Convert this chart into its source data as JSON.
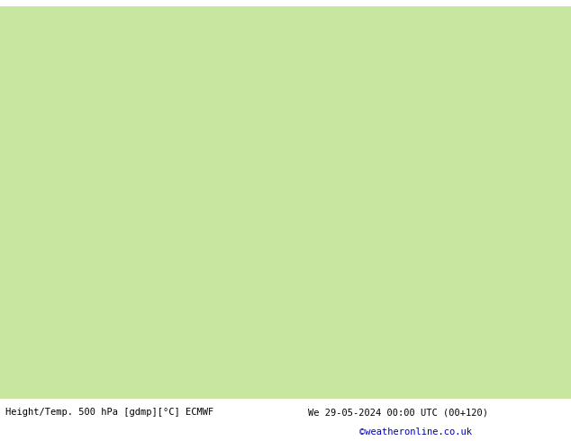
{
  "title_left": "Height/Temp. 500 hPa [gdmp][°C] ECMWF",
  "title_right": "We 29-05-2024 00:00 UTC (00+120)",
  "credit": "©weatheronline.co.uk",
  "background_land": "#c8e6a0",
  "background_sea": "#d0d0d0",
  "border_color": "#9090b8",
  "contour_z500_color": "#000000",
  "contour_temp_color": "#ff8c00",
  "contour_temp2_color": "#dd2200",
  "contour_green_color": "#44cc00",
  "figsize": [
    6.34,
    4.9
  ],
  "dpi": 100,
  "bottom_text_color": "#000000",
  "credit_color": "#0000bb",
  "map_extent": [
    -10,
    42,
    27,
    57
  ],
  "lon_min": -10,
  "lon_max": 42,
  "lat_min": 27,
  "lat_max": 57
}
